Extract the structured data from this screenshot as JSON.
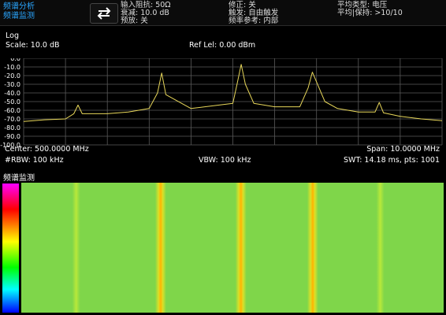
{
  "header": {
    "mode_title": "频谱分析",
    "mode_subtitle": "频谱监测",
    "settings": [
      {
        "label": "输入阻抗: 50Ω"
      },
      {
        "label": "衰减: 10.0 dB"
      },
      {
        "label": "预放: 关"
      },
      {
        "label": "修正: 关"
      },
      {
        "label": "触发: 自由触发"
      },
      {
        "label": "频率参考: 内部"
      },
      {
        "label": "平均类型: 电压"
      },
      {
        "label": "平均|保持: >10/10"
      }
    ]
  },
  "trace": {
    "mode": "Log",
    "scale": "Scale: 10.0 dB",
    "ref_level": "Ref Lel: 0.00 dBm",
    "y_ticks": [
      "0.0",
      "-10.0",
      "-20.0",
      "-30.0",
      "-40.0",
      "-50.0",
      "-60.0",
      "-70.0",
      "-80.0",
      "-90.0",
      "-100.0"
    ],
    "y_unit": "dBm",
    "center": "Center: 500.0000 MHz",
    "span": "Span: 10.0000 MHz",
    "rbw": "#RBW: 100 kHz",
    "vbw": "VBW: 100 kHz",
    "swt": "SWT: 14.18 ms, pts: 1001",
    "trace_color": "#e8d75a"
  },
  "waterfall": {
    "title": "频谱监测",
    "base_color": "#7fd64a"
  },
  "chart_data": {
    "type": "line",
    "x_unit": "MHz",
    "xlim": [
      495.0,
      505.0
    ],
    "ylim": [
      -100.0,
      0.0
    ],
    "y_unit": "dBm",
    "series": [
      {
        "x": [
          495.0,
          495.5,
          496.0,
          496.2,
          496.3,
          496.4,
          497.0,
          497.5,
          498.0,
          498.2,
          498.3,
          498.4,
          499.0,
          499.5,
          500.0,
          500.1,
          500.2,
          500.3,
          500.5,
          501.0,
          501.6,
          501.8,
          501.9,
          502.2,
          502.5,
          503.0,
          503.4,
          503.5,
          503.6,
          504.0,
          504.5,
          505.0
        ],
        "y": [
          -73,
          -71,
          -70,
          -64,
          -54,
          -64,
          -64,
          -62,
          -58,
          -40,
          -17,
          -42,
          -58,
          -55,
          -52,
          -30,
          -7,
          -30,
          -52,
          -56,
          -56,
          -34,
          -16,
          -50,
          -58,
          -62,
          -62,
          -51,
          -63,
          -67,
          -70,
          -72
        ]
      }
    ]
  }
}
